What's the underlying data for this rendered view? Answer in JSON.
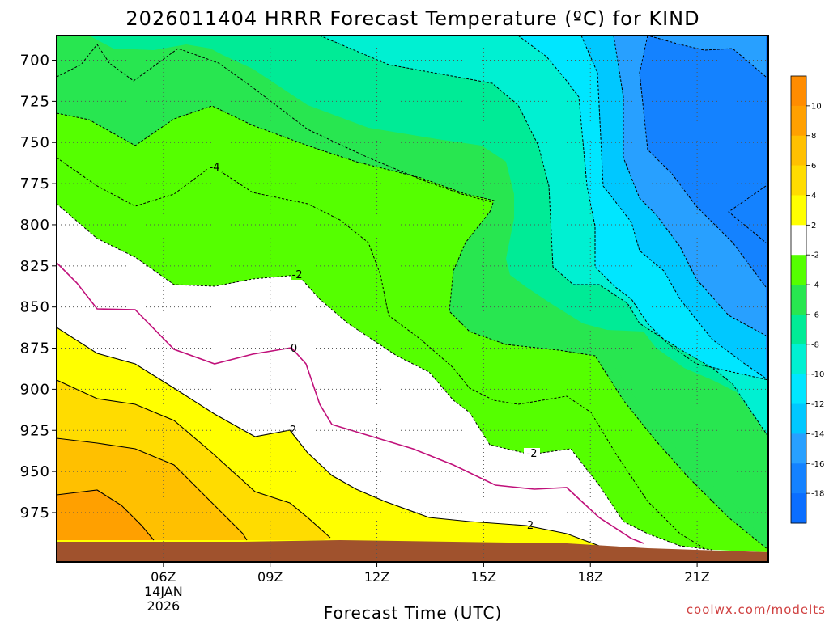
{
  "chart_data": {
    "type": "heatmap",
    "title": "2026011404 HRRR Forecast Temperature (ºC) for KIND",
    "xlabel": "Forecast Time (UTC)",
    "ylabel": "",
    "y_axis": {
      "ticks": [
        700,
        725,
        750,
        775,
        800,
        825,
        850,
        875,
        900,
        925,
        950,
        975
      ],
      "ylim": [
        685,
        1005
      ],
      "grid": true
    },
    "x_axis": {
      "unit": "hour UTC",
      "xlim": [
        3,
        23
      ],
      "ticks": [
        {
          "value": 6,
          "label": "06Z",
          "date_line1": "14JAN",
          "date_line2": "2026"
        },
        {
          "value": 9,
          "label": "09Z"
        },
        {
          "value": 12,
          "label": "12Z"
        },
        {
          "value": 15,
          "label": "15Z"
        },
        {
          "value": 18,
          "label": "18Z"
        },
        {
          "value": 21,
          "label": "21Z"
        }
      ],
      "grid": true
    },
    "contour_levels": [
      -18,
      -16,
      -14,
      -12,
      -10,
      -8,
      -6,
      -4,
      -2,
      2,
      4,
      6,
      8,
      10
    ],
    "fill_bands": [
      {
        "range": "< -18",
        "color": "#0a6eff"
      },
      {
        "range": "-18 to -16",
        "color": "#1482ff"
      },
      {
        "range": "-16 to -14",
        "color": "#28a0ff"
      },
      {
        "range": "-14 to -12",
        "color": "#00c8ff"
      },
      {
        "range": "-12 to -10",
        "color": "#00e6ff"
      },
      {
        "range": "-10 to -8",
        "color": "#00f0d2"
      },
      {
        "range": "-8 to -6",
        "color": "#00eb96"
      },
      {
        "range": "-6 to -4",
        "color": "#28e650"
      },
      {
        "range": "-4 to -2",
        "color": "#55ff00"
      },
      {
        "range": "-2 to 2",
        "color": "#ffffff"
      },
      {
        "range": "2 to 4",
        "color": "#ffff00"
      },
      {
        "range": "4 to 6",
        "color": "#ffdc00"
      },
      {
        "range": "6 to 8",
        "color": "#ffc000"
      },
      {
        "range": "8 to 10",
        "color": "#ffa000"
      },
      {
        "range": "> 10",
        "color": "#ff8c00"
      }
    ],
    "isotherm_labels": [
      "-4",
      "-2",
      "0",
      "2",
      "-2",
      "2"
    ],
    "freezing_line_color": "#c0107a",
    "ground_color": "#a0522d",
    "colorbar": {
      "labels": [
        "10",
        "8",
        "6",
        "4",
        "2",
        "-2",
        "-4",
        "-6",
        "-8",
        "-10",
        "-12",
        "-14",
        "-16",
        "-18"
      ]
    },
    "legend": "right"
  },
  "credit": "coolwx.com/modelts"
}
